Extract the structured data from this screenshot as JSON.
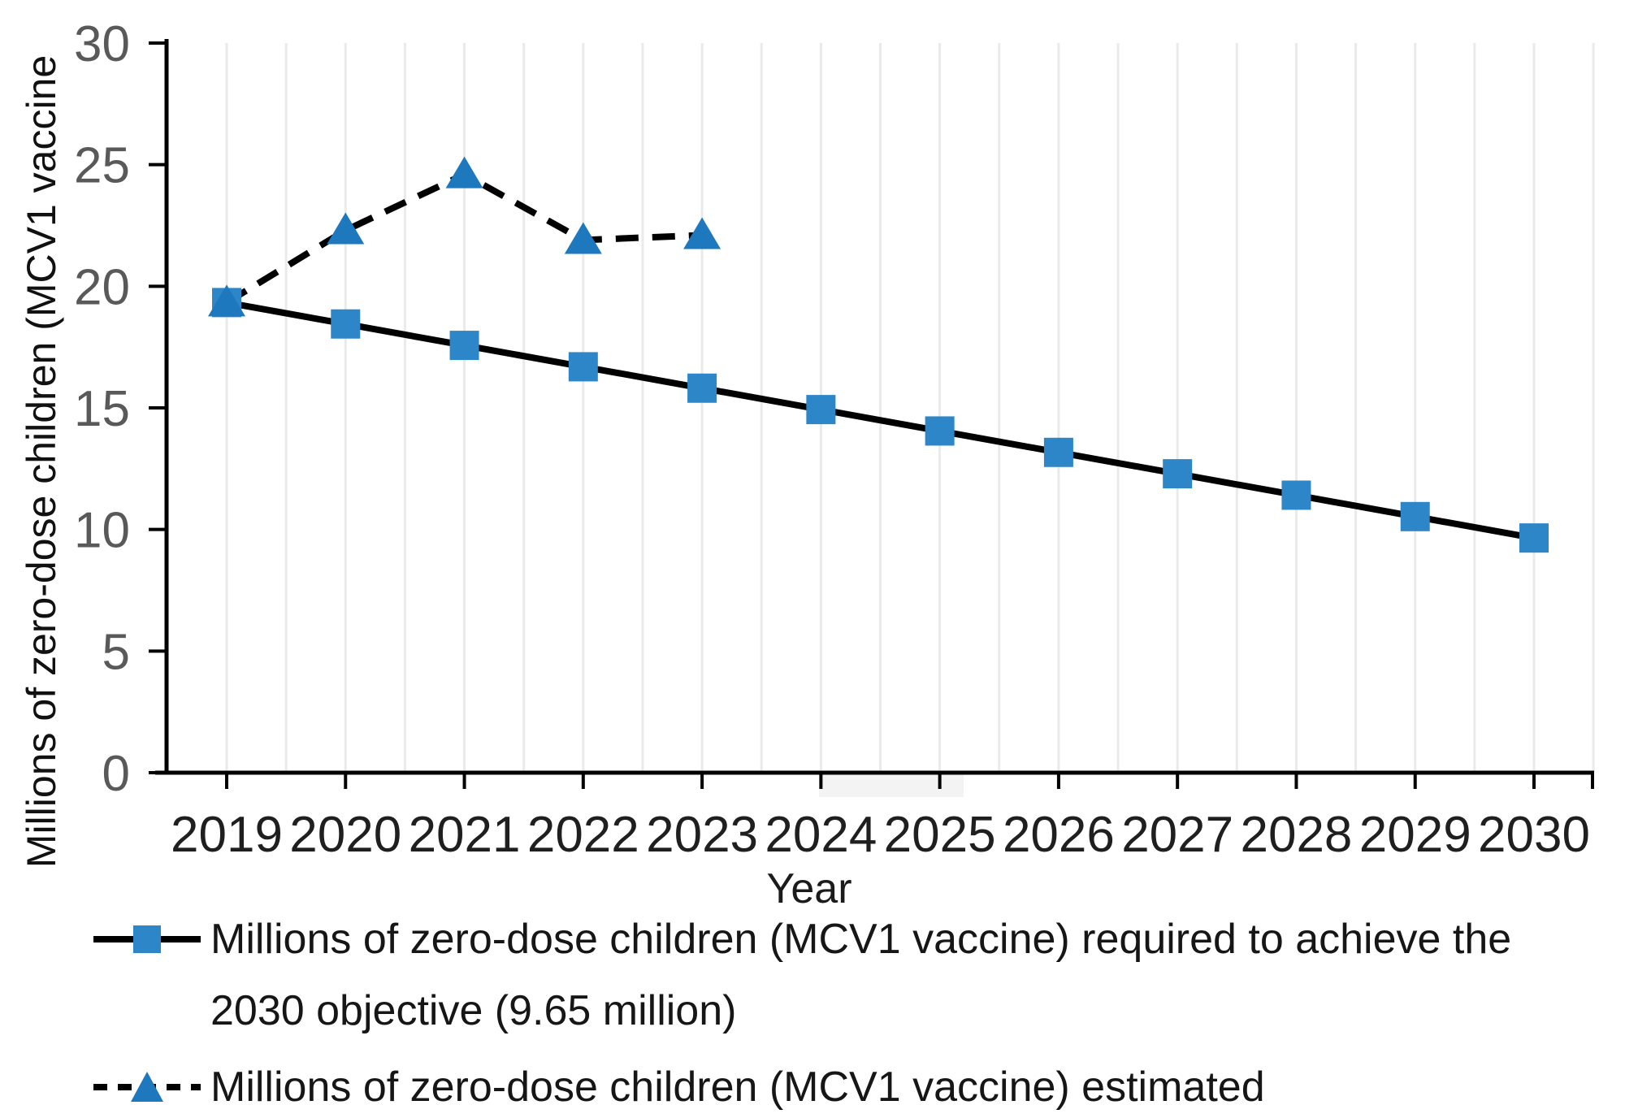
{
  "figure": {
    "ylabel": "Millions of zero-dose children (MCV1 vaccine",
    "xlabel": "Year"
  },
  "chart_data": {
    "type": "line",
    "categories": [
      "2019",
      "2020",
      "2021",
      "2022",
      "2023",
      "2024",
      "2025",
      "2026",
      "2027",
      "2028",
      "2029",
      "2030"
    ],
    "series": [
      {
        "name": "Millions of zero-dose children (MCV1 vaccine) required to achieve the 2030 objective (9.65 million)",
        "style": "solid",
        "marker": "square",
        "values": [
          19.33,
          18.45,
          17.57,
          16.69,
          15.81,
          14.93,
          14.05,
          13.17,
          12.29,
          11.41,
          10.53,
          9.65
        ]
      },
      {
        "name": "Millions of zero-dose children (MCV1 vaccine) estimated",
        "style": "dashed",
        "marker": "triangle",
        "values": [
          19.33,
          22.3,
          24.6,
          21.9,
          22.1,
          null,
          null,
          null,
          null,
          null,
          null,
          null
        ]
      }
    ],
    "title": "",
    "xlabel": "Year",
    "ylabel": "Millions of zero-dose children (MCV1 vaccine",
    "ylim": [
      0,
      30
    ],
    "yticks": [
      0,
      5,
      10,
      15,
      20,
      25,
      30
    ],
    "grid": "vertical-light",
    "legend_position": "bottom-left"
  },
  "legend": {
    "row1_line1": "Millions of zero-dose children (MCV1 vaccine) required to achieve the",
    "row1_line2": "2030 objective (9.65 million)",
    "row2": "Millions of zero-dose children (MCV1 vaccine) estimated"
  },
  "colors": {
    "axis": "#000000",
    "grid": "#eaeaea",
    "ytick_label": "#595959",
    "xtick_label": "#1f1f1f",
    "marker_square": "#2d86c8",
    "marker_triangle": "#1e78be",
    "line": "#000000"
  }
}
